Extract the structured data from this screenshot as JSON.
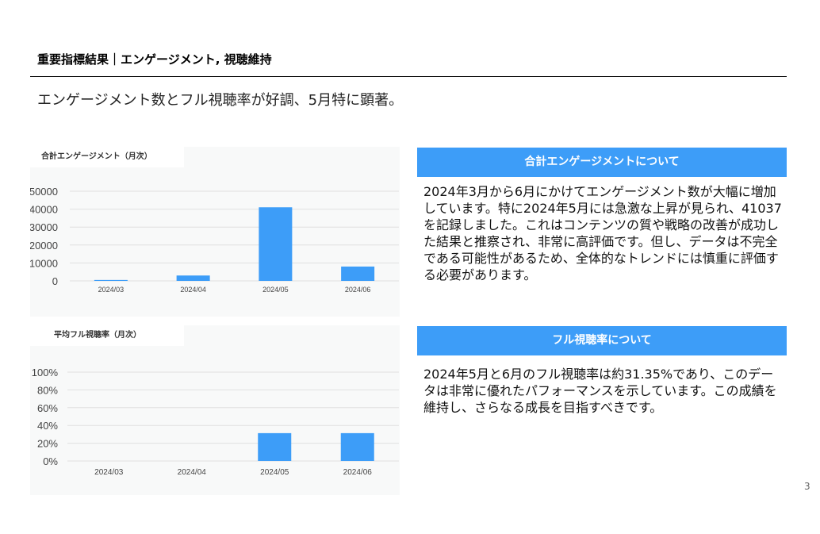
{
  "slide": {
    "title": "重要指標結果｜エンゲージメント, 視聴維持",
    "subtitle": "エンゲージメント数とフル視聴率が好調、5月特に顕著。",
    "page_number": "3",
    "accent_color": "#3d9df8"
  },
  "sections": [
    {
      "heading": "合計エンゲージメントについて",
      "body": "2024年3月から6月にかけてエンゲージメント数が大幅に増加しています。特に2024年5月には急激な上昇が見られ、41037を記録しました。これはコンテンツの質や戦略の改善が成功した結果と推察され、非常に高評価です。但し、データは不完全である可能性があるため、全体的なトレンドには慎重に評価する必要があります。"
    },
    {
      "heading": "フル視聴率について",
      "body": "2024年5月と6月のフル視聴率は約31.35%であり、このデータは非常に優れたパフォーマンスを示しています。この成績を維持し、さらなる成長を目指すべきです。"
    }
  ],
  "chart_data": [
    {
      "type": "bar",
      "title": "合計エンゲージメント（月次）",
      "categories": [
        "2024/03",
        "2024/04",
        "2024/05",
        "2024/06"
      ],
      "values": [
        500,
        3000,
        41037,
        8000
      ],
      "ylim": [
        0,
        50000
      ],
      "yticks": [
        "0",
        "10000",
        "20000",
        "30000",
        "40000",
        "50000"
      ],
      "ytick_values": [
        0,
        10000,
        20000,
        30000,
        40000,
        50000
      ],
      "grid": true,
      "color": "#3d9df8"
    },
    {
      "type": "bar",
      "title": "平均フル視聴率（月次）",
      "categories": [
        "2024/03",
        "2024/04",
        "2024/05",
        "2024/06"
      ],
      "values": [
        0,
        0,
        31.35,
        31.35
      ],
      "ylim": [
        0,
        100
      ],
      "yticks": [
        "0%",
        "20%",
        "40%",
        "60%",
        "80%",
        "100%"
      ],
      "ytick_values": [
        0,
        20,
        40,
        60,
        80,
        100
      ],
      "grid": true,
      "color": "#3d9df8"
    }
  ]
}
